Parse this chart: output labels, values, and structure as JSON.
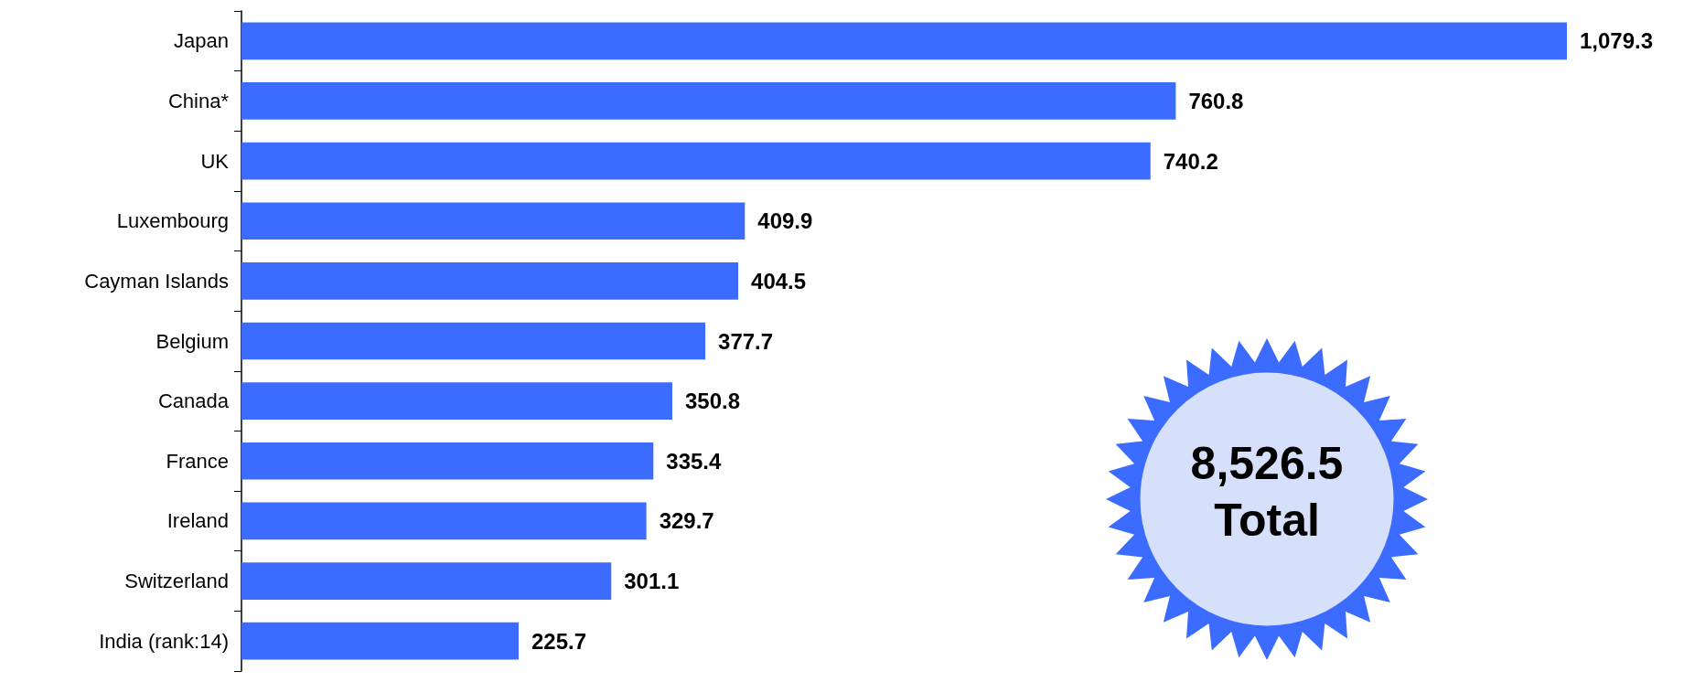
{
  "chart_data": {
    "type": "bar",
    "orientation": "horizontal",
    "categories": [
      "Japan",
      "China*",
      "UK",
      "Luxembourg",
      "Cayman Islands",
      "Belgium",
      "Canada",
      "France",
      "Ireland",
      "Switzerland",
      "India (rank:14)"
    ],
    "values": [
      1079.3,
      760.8,
      740.2,
      409.9,
      404.5,
      377.7,
      350.8,
      335.4,
      329.7,
      301.1,
      225.7
    ],
    "value_labels": [
      "1,079.3",
      "760.8",
      "740.2",
      "409.9",
      "404.5",
      "377.7",
      "350.8",
      "335.4",
      "329.7",
      "301.1",
      "225.7"
    ],
    "color": "#3b6cff",
    "annotations": [
      "8,526.5",
      "Total"
    ]
  }
}
